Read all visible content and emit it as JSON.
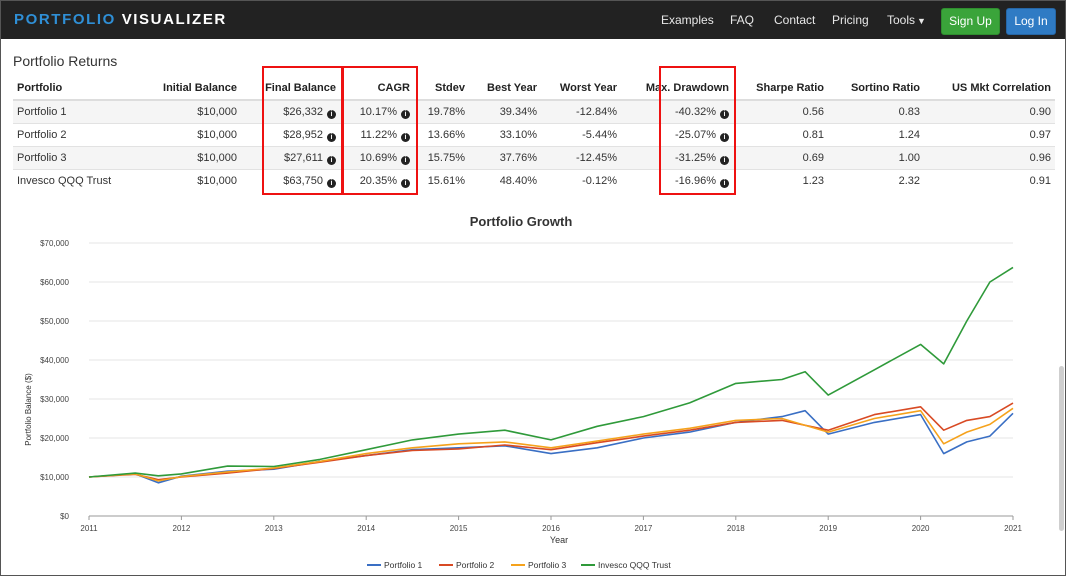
{
  "navbar": {
    "brand_part1": "PORTFOLIO",
    "brand_part2": "VISUALIZER",
    "links": [
      "Examples",
      "FAQ",
      "Contact",
      "Pricing",
      "Tools"
    ],
    "signup_label": "Sign Up",
    "login_label": "Log In"
  },
  "returns": {
    "title": "Portfolio Returns",
    "headers": [
      "Portfolio",
      "Initial Balance",
      "Final Balance",
      "CAGR",
      "Stdev",
      "Best Year",
      "Worst Year",
      "Max. Drawdown",
      "Sharpe Ratio",
      "Sortino Ratio",
      "US Mkt Correlation"
    ],
    "rows": [
      [
        "Portfolio 1",
        "$10,000",
        "$26,332",
        "10.17%",
        "19.78%",
        "39.34%",
        "-12.84%",
        "-40.32%",
        "0.56",
        "0.83",
        "0.90"
      ],
      [
        "Portfolio 2",
        "$10,000",
        "$28,952",
        "11.22%",
        "13.66%",
        "33.10%",
        "-5.44%",
        "-25.07%",
        "0.81",
        "1.24",
        "0.97"
      ],
      [
        "Portfolio 3",
        "$10,000",
        "$27,611",
        "10.69%",
        "15.75%",
        "37.76%",
        "-12.45%",
        "-31.25%",
        "0.69",
        "1.00",
        "0.96"
      ],
      [
        "Invesco QQQ Trust",
        "$10,000",
        "$63,750",
        "20.35%",
        "15.61%",
        "48.40%",
        "-0.12%",
        "-16.96%",
        "1.23",
        "2.32",
        "0.91"
      ]
    ],
    "info_icon_columns": [
      2,
      3,
      7
    ]
  },
  "chart_data": {
    "type": "line",
    "title": "Portfolio Growth",
    "xlabel": "Year",
    "ylabel": "Portfolio Balance ($)",
    "ylim": [
      0,
      70000
    ],
    "xlim": [
      2011,
      2021
    ],
    "yticks": [
      "$0",
      "$10,000",
      "$20,000",
      "$30,000",
      "$40,000",
      "$50,000",
      "$60,000",
      "$70,000"
    ],
    "xticks": [
      "2011",
      "2012",
      "2013",
      "2014",
      "2015",
      "2016",
      "2017",
      "2018",
      "2019",
      "2020",
      "2021"
    ],
    "grid": "horizontal",
    "legend": "bottom",
    "series": [
      {
        "name": "Portfolio 1",
        "color": "#3a6fc4",
        "x": [
          2011,
          2011.5,
          2011.75,
          2012,
          2012.5,
          2013,
          2013.5,
          2014,
          2014.5,
          2015,
          2015.5,
          2016,
          2016.5,
          2017,
          2017.5,
          2018,
          2018.5,
          2018.75,
          2019,
          2019.5,
          2020,
          2020.25,
          2020.5,
          2020.75,
          2021
        ],
        "y": [
          10000,
          10800,
          8500,
          10200,
          11500,
          12000,
          14000,
          15500,
          17000,
          17500,
          18000,
          16000,
          17500,
          20000,
          21500,
          24000,
          25500,
          27000,
          21000,
          24000,
          26000,
          16000,
          19000,
          20500,
          26332
        ]
      },
      {
        "name": "Portfolio 2",
        "color": "#d84a24",
        "x": [
          2011,
          2011.5,
          2011.75,
          2012,
          2012.5,
          2013,
          2013.5,
          2014,
          2014.5,
          2015,
          2015.5,
          2016,
          2016.5,
          2017,
          2017.5,
          2018,
          2018.5,
          2019,
          2019.5,
          2020,
          2020.25,
          2020.5,
          2020.75,
          2021
        ],
        "y": [
          10000,
          10700,
          9300,
          10000,
          11000,
          12200,
          13800,
          15500,
          16800,
          17200,
          18200,
          17000,
          18800,
          20500,
          22000,
          24000,
          24500,
          22000,
          26000,
          28000,
          22000,
          24500,
          25500,
          28952
        ]
      },
      {
        "name": "Portfolio 3",
        "color": "#f5a21c",
        "x": [
          2011,
          2011.5,
          2011.75,
          2012,
          2012.5,
          2013,
          2013.5,
          2014,
          2014.5,
          2015,
          2015.5,
          2016,
          2016.5,
          2017,
          2017.5,
          2018,
          2018.5,
          2019,
          2019.5,
          2020,
          2020.25,
          2020.5,
          2020.75,
          2021
        ],
        "y": [
          10000,
          10800,
          9000,
          10100,
          11300,
          12300,
          14000,
          16000,
          17500,
          18500,
          19000,
          17500,
          19200,
          21000,
          22500,
          24500,
          25000,
          21500,
          25000,
          27000,
          18500,
          21500,
          23500,
          27611
        ]
      },
      {
        "name": "Invesco QQQ Trust",
        "color": "#2f9a3a",
        "x": [
          2011,
          2011.5,
          2011.75,
          2012,
          2012.5,
          2013,
          2013.5,
          2014,
          2014.5,
          2015,
          2015.5,
          2016,
          2016.5,
          2017,
          2017.5,
          2018,
          2018.5,
          2018.75,
          2019,
          2019.5,
          2020,
          2020.25,
          2020.5,
          2020.75,
          2021
        ],
        "y": [
          10000,
          11000,
          10300,
          10800,
          12800,
          12700,
          14500,
          17000,
          19500,
          21000,
          22000,
          19500,
          23000,
          25500,
          29000,
          34000,
          35000,
          37000,
          31000,
          37500,
          44000,
          39000,
          50000,
          60000,
          63750
        ]
      }
    ]
  }
}
